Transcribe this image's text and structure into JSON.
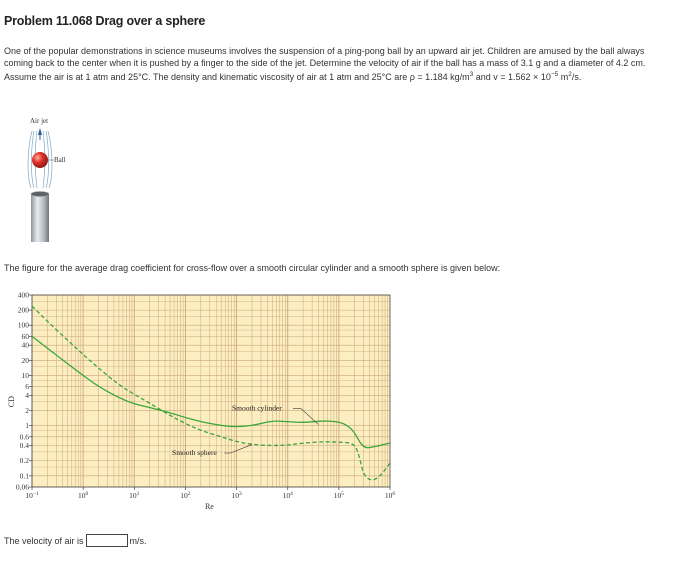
{
  "problem": {
    "title": "Problem 11.068 Drag over a sphere",
    "text_1": "One of the popular demonstrations in science museums involves the suspension of a ping-pong ball by an upward air jet. Children are amused by the ball always coming back to the center when it is pushed by a finger to the side of the jet. Determine the velocity of air if the ball has a mass of 3.1 g and a diameter of 4.2 cm. Assume the air is at 1 atm and 25°C. The density and kinematic viscosity of air at 1 atm and 25°C are ",
    "rho_text": "ρ = 1.184 kg/m",
    "rho_exp": "3",
    "nu_text": " and v = 1.562 × 10",
    "nu_exp": "−5",
    "nu_unit": " m",
    "nu_unit_exp": "2",
    "nu_end": "/s."
  },
  "figure": {
    "air_jet_label": "Air jet",
    "ball_label": "Ball",
    "ball_color": "#e0302a"
  },
  "caption": "The figure for the average drag coefficient for cross-flow over a smooth circular cylinder and a smooth sphere is given below:",
  "chart_data": {
    "type": "line",
    "xlabel": "Re",
    "ylabel": "CD",
    "x_scale": "log",
    "y_scale": "log",
    "xlim": [
      0.1,
      1000000
    ],
    "ylim": [
      0.06,
      400
    ],
    "x_ticks": [
      {
        "value": 0.1,
        "base": "10",
        "exp": "−1"
      },
      {
        "value": 1,
        "base": "10",
        "exp": "0"
      },
      {
        "value": 10,
        "base": "10",
        "exp": "1"
      },
      {
        "value": 100,
        "base": "10",
        "exp": "2"
      },
      {
        "value": 1000,
        "base": "10",
        "exp": "3"
      },
      {
        "value": 10000,
        "base": "10",
        "exp": "4"
      },
      {
        "value": 100000,
        "base": "10",
        "exp": "5"
      },
      {
        "value": 1000000,
        "base": "10",
        "exp": "6"
      }
    ],
    "y_ticks": [
      {
        "value": 400,
        "label": "400"
      },
      {
        "value": 200,
        "label": "200"
      },
      {
        "value": 100,
        "label": "100"
      },
      {
        "value": 60,
        "label": "60"
      },
      {
        "value": 40,
        "label": "40"
      },
      {
        "value": 20,
        "label": "20"
      },
      {
        "value": 10,
        "label": "10"
      },
      {
        "value": 6,
        "label": "6"
      },
      {
        "value": 4,
        "label": "4"
      },
      {
        "value": 2,
        "label": "2"
      },
      {
        "value": 1,
        "label": "1"
      },
      {
        "value": 0.6,
        "label": "0.6"
      },
      {
        "value": 0.4,
        "label": "0.4"
      },
      {
        "value": 0.2,
        "label": "0.2"
      },
      {
        "value": 0.1,
        "label": "0.1"
      },
      {
        "value": 0.06,
        "label": "0.06"
      }
    ],
    "grid": true,
    "background_color": "#fdeec2",
    "grid_color": "#c9a77a",
    "series": [
      {
        "name": "Smooth cylinder",
        "style": "solid",
        "color": "#3aa63a",
        "x": [
          0.1,
          0.2,
          0.5,
          1,
          2,
          5,
          10,
          20,
          50,
          100,
          200,
          500,
          1000,
          2000,
          5000,
          10000,
          20000,
          50000,
          100000,
          150000,
          200000,
          300000,
          500000,
          1000000
        ],
        "y": [
          60,
          35,
          17,
          10,
          6,
          3.6,
          2.7,
          2.3,
          1.8,
          1.45,
          1.2,
          1.0,
          0.95,
          1.0,
          1.25,
          1.2,
          1.15,
          1.25,
          1.2,
          1.0,
          0.75,
          0.35,
          0.38,
          0.45
        ]
      },
      {
        "name": "Smooth sphere",
        "style": "dashed",
        "color": "#3aa63a",
        "x": [
          0.1,
          0.2,
          0.5,
          1,
          2,
          5,
          10,
          20,
          50,
          100,
          200,
          500,
          1000,
          2000,
          5000,
          10000,
          20000,
          50000,
          100000,
          200000,
          250000,
          300000,
          400000,
          600000,
          1000000
        ],
        "y": [
          240,
          120,
          50,
          26,
          14,
          6.5,
          4.2,
          2.8,
          1.6,
          1.1,
          0.8,
          0.6,
          0.48,
          0.42,
          0.4,
          0.41,
          0.45,
          0.48,
          0.47,
          0.45,
          0.25,
          0.11,
          0.08,
          0.09,
          0.18
        ]
      }
    ],
    "annotations": [
      {
        "text": "Smooth cylinder",
        "series": "Smooth cylinder"
      },
      {
        "text": "Smooth sphere",
        "series": "Smooth sphere"
      }
    ]
  },
  "answer": {
    "prompt": "The velocity of air is",
    "value": "",
    "unit": "m/s."
  }
}
